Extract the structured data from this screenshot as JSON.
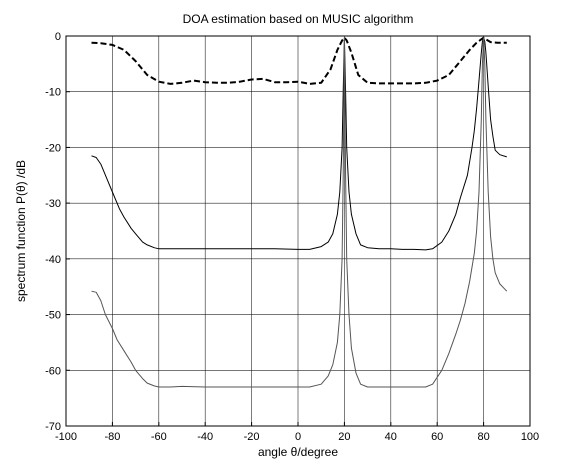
{
  "chart_data": {
    "type": "line",
    "title": "DOA estimation based on MUSIC algorithm",
    "xlabel": "angle θ/degree",
    "ylabel": "spectrum function P(θ) /dB",
    "xlim": [
      -100,
      100
    ],
    "ylim": [
      -70,
      0
    ],
    "xticks": [
      -100,
      -80,
      -60,
      -40,
      -20,
      0,
      20,
      40,
      60,
      80,
      100
    ],
    "yticks": [
      0,
      -10,
      -20,
      -30,
      -40,
      -50,
      -60,
      -70
    ],
    "grid": true,
    "series": [
      {
        "color": "#000000",
        "style": "dashed",
        "x": [
          -89,
          -85,
          -80,
          -75,
          -70,
          -65,
          -60,
          -55,
          -50,
          -45,
          -40,
          -35,
          -30,
          -25,
          -20,
          -15,
          -10,
          -5,
          0,
          5,
          10,
          14,
          17,
          19,
          20,
          21,
          23,
          26,
          30,
          35,
          40,
          45,
          50,
          55,
          60,
          65,
          70,
          74,
          77,
          79,
          80,
          81,
          83,
          86,
          90
        ],
        "y": [
          -1.2,
          -1.3,
          -1.6,
          -2.5,
          -4.5,
          -7,
          -8.2,
          -8.6,
          -8.4,
          -8,
          -8.3,
          -8.4,
          -8.4,
          -8.2,
          -7.8,
          -7.7,
          -8.3,
          -8.3,
          -8.2,
          -8.6,
          -8.4,
          -6,
          -2.5,
          -0.8,
          -0.3,
          -0.8,
          -3,
          -7,
          -8.4,
          -8.5,
          -8.5,
          -8.5,
          -8.5,
          -8.4,
          -8,
          -7,
          -4.5,
          -2.5,
          -1.2,
          -0.6,
          -0.3,
          -0.6,
          -1.1,
          -1.2,
          -1.2
        ]
      },
      {
        "color": "#000000",
        "style": "solid",
        "x": [
          -89,
          -87,
          -85,
          -82,
          -80,
          -77,
          -75,
          -72,
          -70,
          -67,
          -65,
          -62,
          -60,
          -57,
          -55,
          -50,
          -40,
          -30,
          -20,
          -10,
          0,
          5,
          10,
          13,
          15,
          17,
          18,
          19,
          19.5,
          20,
          20.5,
          21,
          22,
          23,
          25,
          27,
          30,
          35,
          40,
          45,
          50,
          55,
          58,
          62,
          65,
          68,
          70,
          73,
          75,
          76,
          77,
          78,
          79,
          79.5,
          80,
          80.5,
          81,
          82,
          83,
          84,
          85,
          87,
          90
        ],
        "y": [
          -21.5,
          -21.8,
          -23,
          -26,
          -28,
          -31,
          -32.5,
          -34.5,
          -35.5,
          -37,
          -37.5,
          -38,
          -38.2,
          -38.2,
          -38.2,
          -38.2,
          -38.2,
          -38.2,
          -38.2,
          -38.2,
          -38.3,
          -38.3,
          -37.8,
          -37,
          -35.5,
          -32,
          -28,
          -20,
          -10,
          -0.3,
          -10,
          -20,
          -28,
          -32,
          -35.5,
          -37.5,
          -38,
          -38.2,
          -38.2,
          -38.3,
          -38.3,
          -38.4,
          -38.2,
          -37,
          -35,
          -32,
          -29,
          -25,
          -20,
          -17,
          -13,
          -8,
          -3,
          -1,
          -0.3,
          -1,
          -3,
          -9,
          -15,
          -18,
          -20.5,
          -21.3,
          -21.7
        ]
      },
      {
        "color": "#555555",
        "style": "solid",
        "x": [
          -89,
          -87,
          -85,
          -83,
          -80,
          -78,
          -75,
          -72,
          -70,
          -67,
          -65,
          -62,
          -60,
          -57,
          -55,
          -50,
          -40,
          -30,
          -20,
          -10,
          0,
          5,
          10,
          13,
          15,
          17,
          18,
          19,
          19.5,
          20,
          20.5,
          21,
          22,
          23,
          25,
          27,
          30,
          35,
          40,
          45,
          50,
          55,
          58,
          62,
          65,
          68,
          70,
          72,
          74,
          76,
          77,
          78,
          79,
          79.5,
          80,
          80.5,
          81,
          82,
          83,
          84,
          85,
          87,
          90
        ],
        "y": [
          -45.8,
          -46,
          -47.5,
          -50,
          -52.5,
          -54.5,
          -56.5,
          -58.5,
          -60,
          -61.5,
          -62.3,
          -62.8,
          -63,
          -63,
          -63,
          -62.9,
          -63,
          -63,
          -63,
          -63,
          -63,
          -63,
          -62.5,
          -61,
          -59,
          -55,
          -50,
          -40,
          -25,
          -0.3,
          -25,
          -40,
          -50,
          -56,
          -60.5,
          -62.5,
          -63,
          -63,
          -63,
          -63,
          -63,
          -63,
          -62.5,
          -60,
          -57,
          -53.5,
          -51,
          -48,
          -44,
          -39,
          -35,
          -28,
          -15,
          -5,
          -0.3,
          -5,
          -15,
          -28,
          -36,
          -40,
          -42.5,
          -44.5,
          -45.8
        ]
      }
    ]
  }
}
